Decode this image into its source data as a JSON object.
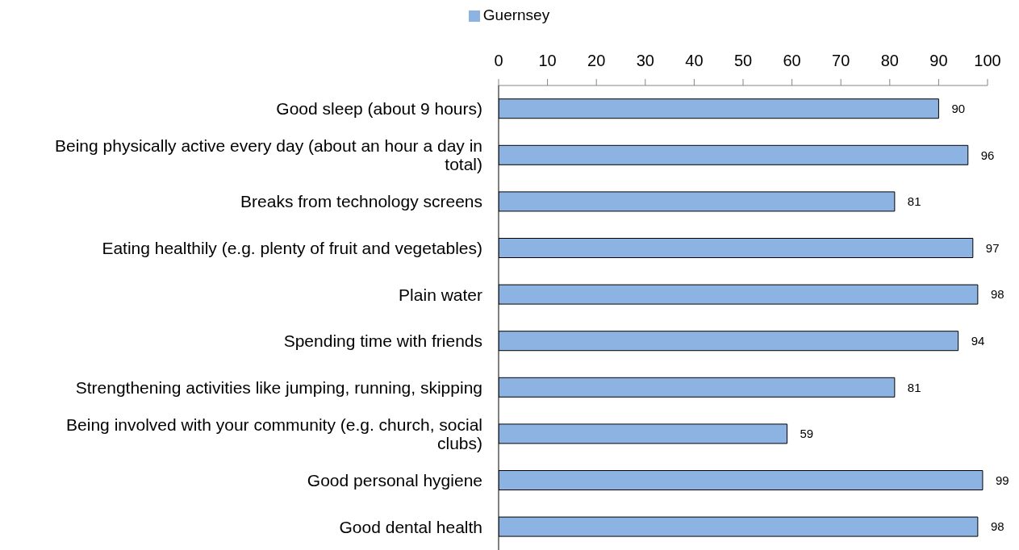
{
  "chart_data": {
    "type": "bar",
    "orientation": "horizontal",
    "categories": [
      "Good sleep (about 9 hours)",
      "Being physically active every day (about an hour a day in total)",
      "Breaks from technology screens",
      "Eating healthily (e.g. plenty of fruit and vegetables)",
      "Plain water",
      "Spending time with friends",
      "Strengthening activities like jumping, running, skipping",
      "Being involved with your community (e.g. church, social clubs)",
      "Good personal hygiene",
      "Good dental health"
    ],
    "series": [
      {
        "name": "Guernsey",
        "color": "#8db3e2",
        "values": [
          90,
          96,
          81,
          97,
          98,
          94,
          81,
          59,
          99,
          98
        ]
      }
    ],
    "xlim": [
      0,
      100
    ],
    "xticks": [
      0,
      10,
      20,
      30,
      40,
      50,
      60,
      70,
      80,
      90,
      100
    ],
    "data_labels": true,
    "legend": "top"
  }
}
